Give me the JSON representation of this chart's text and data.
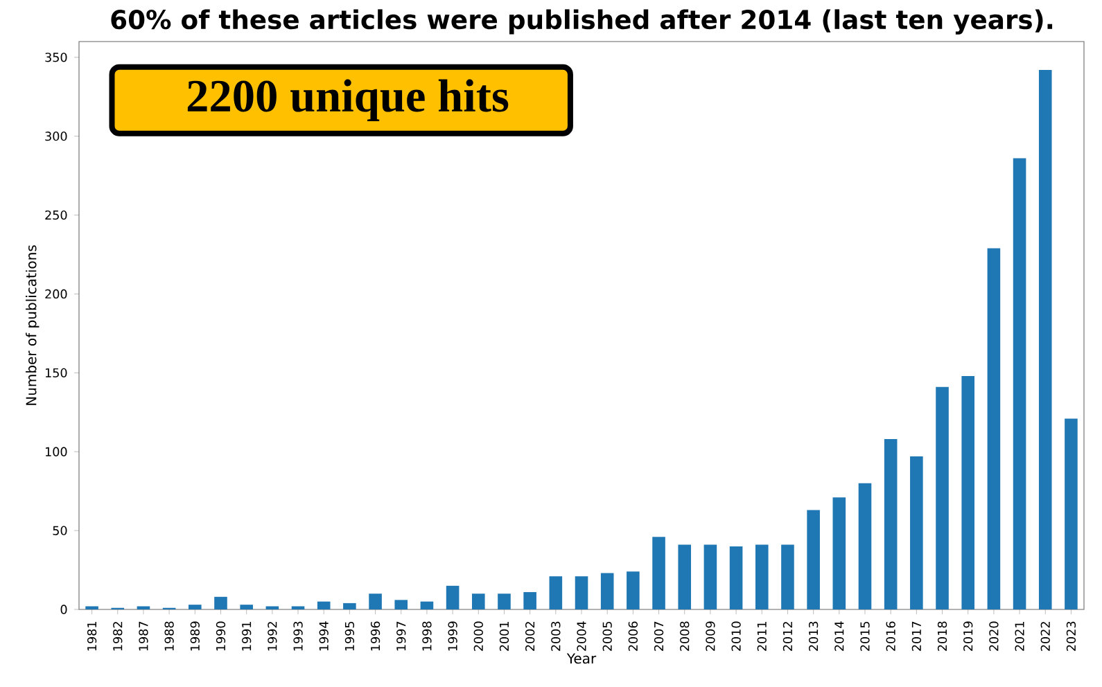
{
  "chart_data": {
    "type": "bar",
    "title": "60% of these articles were published after 2014 (last ten years).",
    "xlabel": "Year",
    "ylabel": "Number of publications",
    "categories": [
      "1981",
      "1982",
      "1987",
      "1988",
      "1989",
      "1990",
      "1991",
      "1992",
      "1993",
      "1994",
      "1995",
      "1996",
      "1997",
      "1998",
      "1999",
      "2000",
      "2001",
      "2002",
      "2003",
      "2004",
      "2005",
      "2006",
      "2007",
      "2008",
      "2009",
      "2010",
      "2011",
      "2012",
      "2013",
      "2014",
      "2015",
      "2016",
      "2017",
      "2018",
      "2019",
      "2020",
      "2021",
      "2022",
      "2023"
    ],
    "values": [
      2,
      1,
      2,
      1,
      3,
      8,
      3,
      2,
      2,
      5,
      4,
      10,
      6,
      5,
      15,
      10,
      10,
      11,
      21,
      21,
      23,
      24,
      46,
      41,
      41,
      40,
      41,
      41,
      63,
      71,
      80,
      108,
      97,
      141,
      148,
      229,
      286,
      342,
      121
    ],
    "color": "#1f77b4",
    "ylim": [
      0,
      360
    ],
    "yticks": [
      0,
      50,
      100,
      150,
      200,
      250,
      300,
      350
    ],
    "annotations": [
      "2200 unique hits"
    ]
  }
}
